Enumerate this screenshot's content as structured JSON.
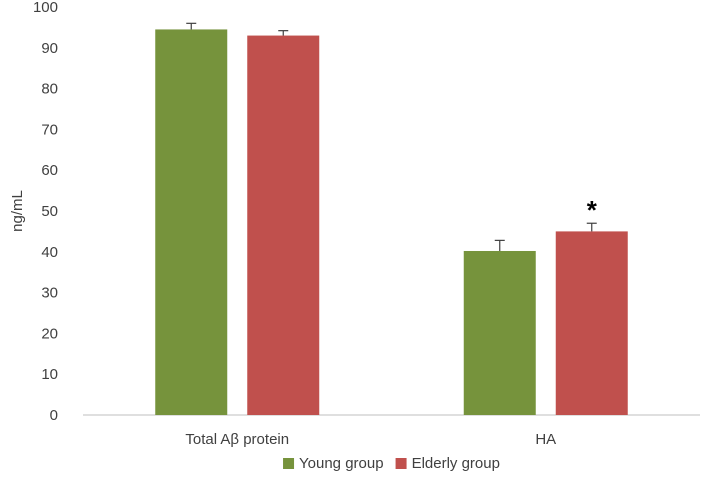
{
  "chart_data": {
    "type": "bar",
    "title": "",
    "xlabel": "",
    "ylabel": "ng/mL",
    "ylim": [
      0,
      100
    ],
    "yticks": [
      0,
      10,
      20,
      30,
      40,
      50,
      60,
      70,
      80,
      90,
      100
    ],
    "categories": [
      "Total Aβ protein",
      "HA"
    ],
    "series": [
      {
        "name": "Young group",
        "color": "#76933c",
        "values": [
          94.5,
          40.2
        ],
        "error": [
          1.5,
          2.6
        ]
      },
      {
        "name": "Elderly group",
        "color": "#c0504d",
        "values": [
          93.0,
          45.0
        ],
        "error": [
          1.2,
          2.0
        ]
      }
    ],
    "annotations": [
      {
        "text": "*",
        "category": "HA",
        "series": "Elderly group"
      }
    ],
    "legend": "bottom",
    "grid": false
  }
}
